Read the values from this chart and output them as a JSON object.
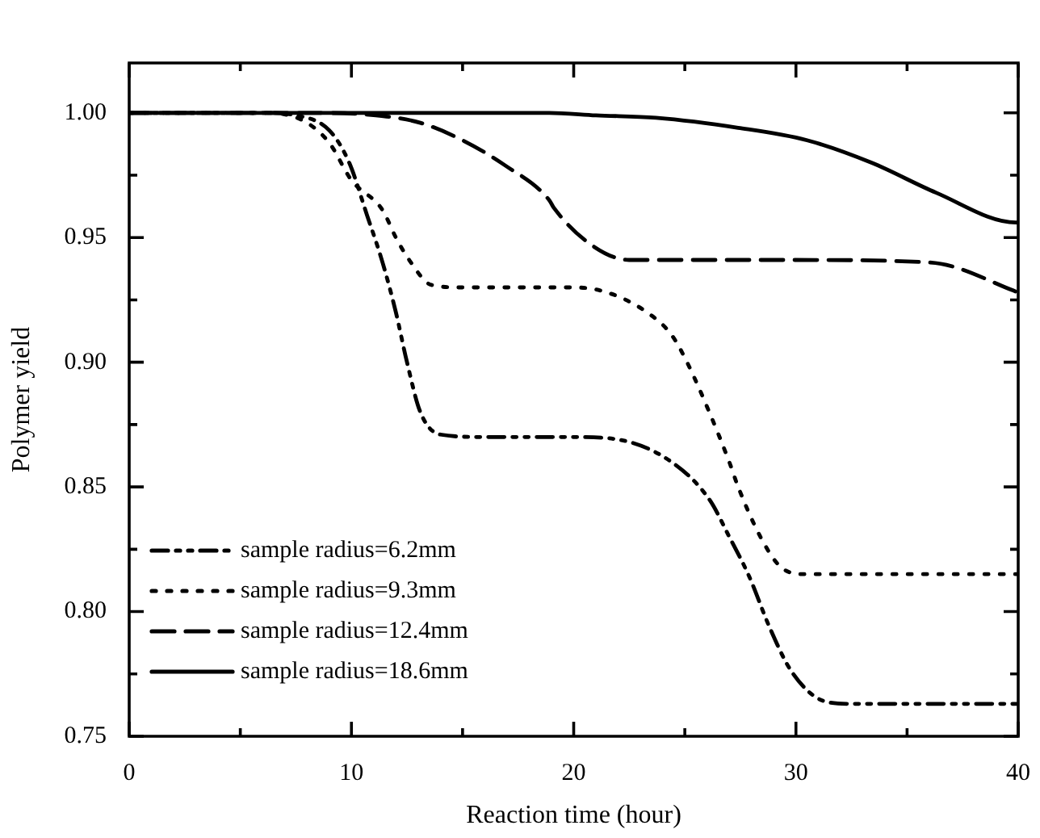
{
  "chart_data": {
    "type": "line",
    "xlabel": "Reaction time (hour)",
    "ylabel": "Polymer yield",
    "xlim": [
      0,
      40
    ],
    "ylim": [
      0.75,
      1.02
    ],
    "xticks": [
      0,
      {
        "value": 5,
        "label": null
      },
      10,
      {
        "value": 15,
        "label": null
      },
      20,
      {
        "value": 25,
        "label": null
      },
      30,
      {
        "value": 35,
        "label": null
      },
      40
    ],
    "yticks": [
      {
        "value": 0.75,
        "label": "0.75"
      },
      {
        "value": 0.775,
        "label": null
      },
      {
        "value": 0.8,
        "label": "0.80"
      },
      {
        "value": 0.825,
        "label": null
      },
      {
        "value": 0.85,
        "label": "0.85"
      },
      {
        "value": 0.875,
        "label": null
      },
      {
        "value": 0.9,
        "label": "0.90"
      },
      {
        "value": 0.925,
        "label": null
      },
      {
        "value": 0.95,
        "label": "0.95"
      },
      {
        "value": 0.975,
        "label": null
      },
      {
        "value": 1.0,
        "label": "1.00"
      }
    ],
    "grid": false,
    "legend": "bottom left",
    "marker": "none",
    "series": [
      {
        "name": "sample radius=6.2mm",
        "color": "#000000",
        "line_style": "dashdot",
        "x": [
          0,
          6,
          7.5,
          9,
          9.9,
          10.7,
          11.4,
          12,
          12.5,
          13.1,
          14,
          16,
          20,
          22,
          24.4,
          26.1,
          27,
          27.9,
          28.8,
          29.8,
          31.3,
          32.5,
          36,
          40
        ],
        "values": [
          1,
          1,
          0.999,
          0.993,
          0.98,
          0.959,
          0.94,
          0.92,
          0.9,
          0.88,
          0.871,
          0.87,
          0.87,
          0.869,
          0.86,
          0.845,
          0.83,
          0.814,
          0.794,
          0.776,
          0.764,
          0.763,
          0.763,
          0.763
        ]
      },
      {
        "name": "sample radius=9.3mm",
        "color": "#000000",
        "line_style": "dotted",
        "x": [
          0,
          6,
          7.8,
          9,
          10,
          11.4,
          12,
          12.6,
          13.6,
          15,
          20,
          21.5,
          23.3,
          24.4,
          25.1,
          26.1,
          27,
          27.4,
          28.4,
          29.3,
          30.4,
          35,
          40
        ],
        "values": [
          1,
          1,
          0.997,
          0.988,
          0.973,
          0.961,
          0.95,
          0.941,
          0.931,
          0.93,
          0.93,
          0.928,
          0.92,
          0.911,
          0.9,
          0.88,
          0.86,
          0.85,
          0.83,
          0.818,
          0.815,
          0.815,
          0.815
        ]
      },
      {
        "name": "sample radius=12.4mm",
        "color": "#000000",
        "line_style": "dashed",
        "x": [
          0,
          8,
          11.1,
          13.1,
          15,
          16.9,
          18.9,
          19.1,
          20.8,
          22.5,
          25,
          30,
          36,
          37.2,
          39.7,
          40
        ],
        "values": [
          1,
          1,
          0.999,
          0.996,
          0.989,
          0.979,
          0.965,
          0.962,
          0.947,
          0.941,
          0.941,
          0.941,
          0.94,
          0.938,
          0.929,
          0.928
        ]
      },
      {
        "name": "sample radius=18.6mm",
        "color": "#000000",
        "line_style": "solid",
        "x": [
          0,
          10,
          18.9,
          21,
          23.7,
          27.4,
          30.5,
          33.4,
          36.3,
          39.9,
          40
        ],
        "values": [
          1,
          1,
          1,
          0.999,
          0.998,
          0.994,
          0.989,
          0.98,
          0.968,
          0.956,
          0.956
        ]
      }
    ]
  }
}
